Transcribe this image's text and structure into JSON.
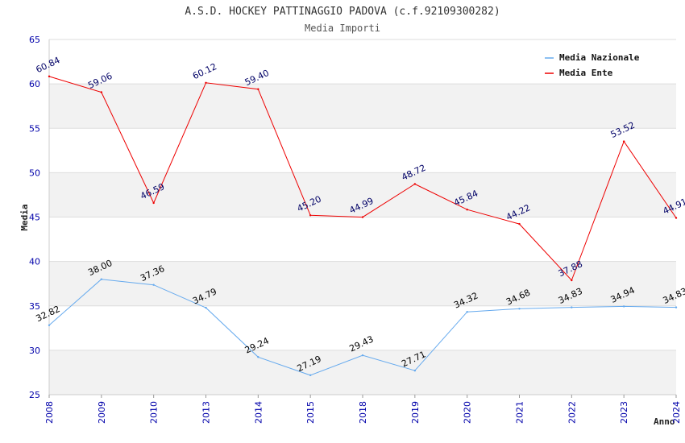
{
  "chart_data": {
    "type": "line",
    "title": "A.S.D. HOCKEY PATTINAGGIO PADOVA (c.f.92109300282)",
    "subtitle": "Media Importi",
    "xlabel": "Anno",
    "ylabel": "Media",
    "ylim": [
      25,
      65
    ],
    "yticks": [
      25,
      30,
      35,
      40,
      45,
      50,
      55,
      60,
      65
    ],
    "categories": [
      "2008",
      "2009",
      "2010",
      "2013",
      "2014",
      "2015",
      "2018",
      "2019",
      "2020",
      "2021",
      "2022",
      "2023",
      "2024"
    ],
    "series": [
      {
        "name": "Media Nazionale",
        "color": "#66aaee",
        "label_color": "#000000",
        "values": [
          32.82,
          38.0,
          37.36,
          34.79,
          29.24,
          27.19,
          29.43,
          27.71,
          34.32,
          34.68,
          34.83,
          34.94,
          34.83
        ],
        "labels": [
          "32.82",
          "38.00",
          "37.36",
          "34.79",
          "29.24",
          "27.19",
          "29.43",
          "27.71",
          "34.32",
          "34.68",
          "34.83",
          "34.94",
          "34.83"
        ]
      },
      {
        "name": "Media Ente",
        "color": "#ee0000",
        "label_color": "#000066",
        "values": [
          60.84,
          59.06,
          46.59,
          60.12,
          59.4,
          45.2,
          44.99,
          48.72,
          45.84,
          44.22,
          37.88,
          53.52,
          44.91
        ],
        "labels": [
          "60.84",
          "59.06",
          "46.59",
          "60.12",
          "59.40",
          "45.20",
          "44.99",
          "48.72",
          "45.84",
          "44.22",
          "37.88",
          "53.52",
          "44.91"
        ]
      }
    ],
    "grid": true,
    "band_colors": [
      "#f2f2f2",
      "#ffffff"
    ],
    "legend_position": "top-right"
  }
}
